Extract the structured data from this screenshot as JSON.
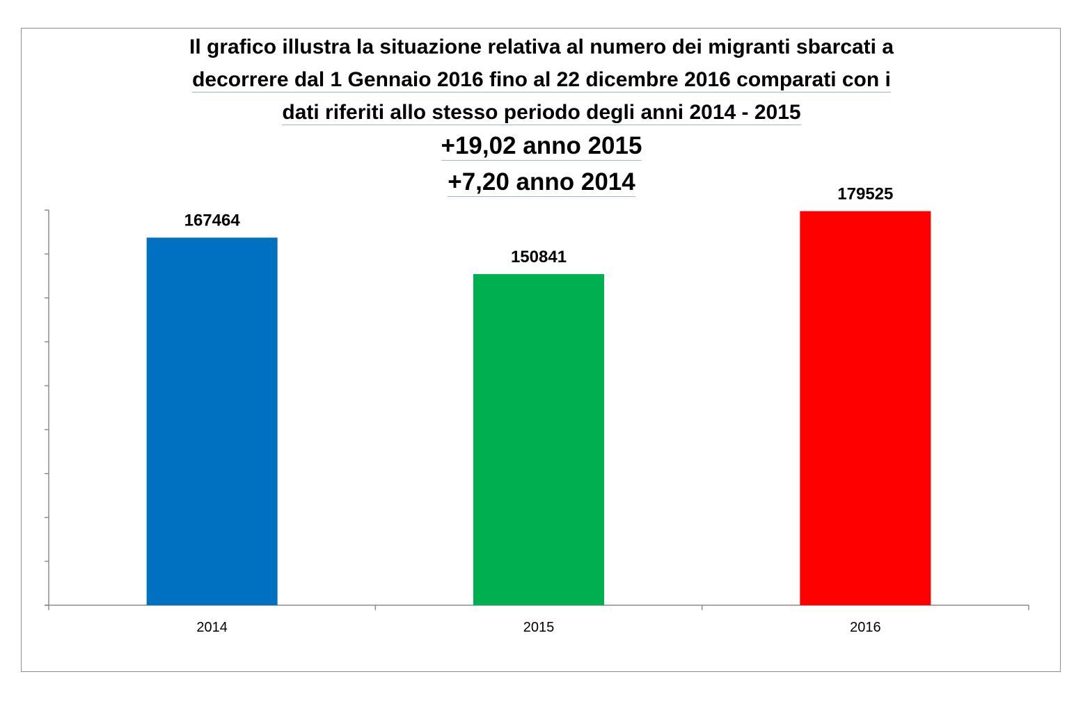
{
  "chart_data": {
    "type": "bar",
    "title_lines": [
      "Il grafico illustra la situazione relativa al numero dei migranti sbarcati a",
      "decorrere dal 1 Gennaio 2016 fino al 22 dicembre 2016  comparati con i",
      "dati riferiti allo stesso periodo degli anni 2014 - 2015",
      "+19,02 anno 2015",
      "+7,20 anno 2014"
    ],
    "categories": [
      "2014",
      "2015",
      "2016"
    ],
    "values": [
      167464,
      150841,
      179525
    ],
    "bar_colors": [
      "#0070c0",
      "#00b050",
      "#ff0000"
    ],
    "ylim": [
      0,
      180000
    ],
    "y_tick_step": 20000,
    "y_tick_labels_shown": false,
    "grid": false,
    "legend": "none"
  }
}
